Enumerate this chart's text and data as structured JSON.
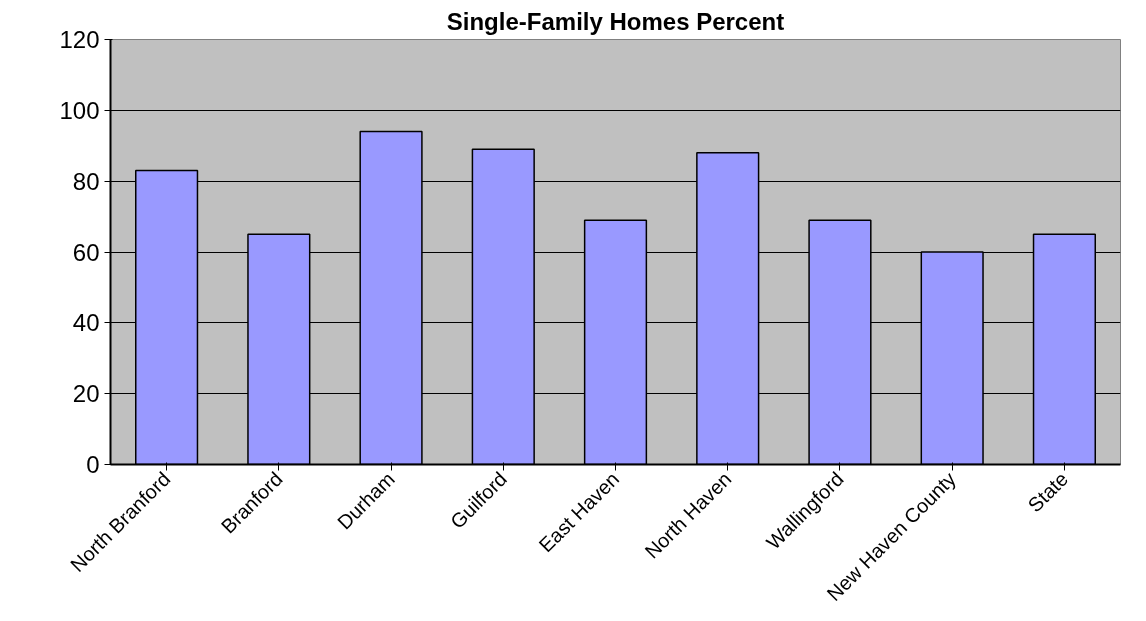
{
  "chart_data": {
    "type": "bar",
    "title": "Single-Family Homes Percent",
    "categories": [
      "North Branford",
      "Branford",
      "Durham",
      "Guilford",
      "East Haven",
      "North Haven",
      "Wallingford",
      "New Haven County",
      "State"
    ],
    "values": [
      83,
      65,
      94,
      89,
      69,
      88,
      69,
      60,
      65
    ],
    "color": "#9999ff",
    "ylim": [
      0,
      120
    ],
    "yticks": [
      0,
      20,
      40,
      60,
      80,
      100,
      120
    ],
    "grid": "y"
  }
}
